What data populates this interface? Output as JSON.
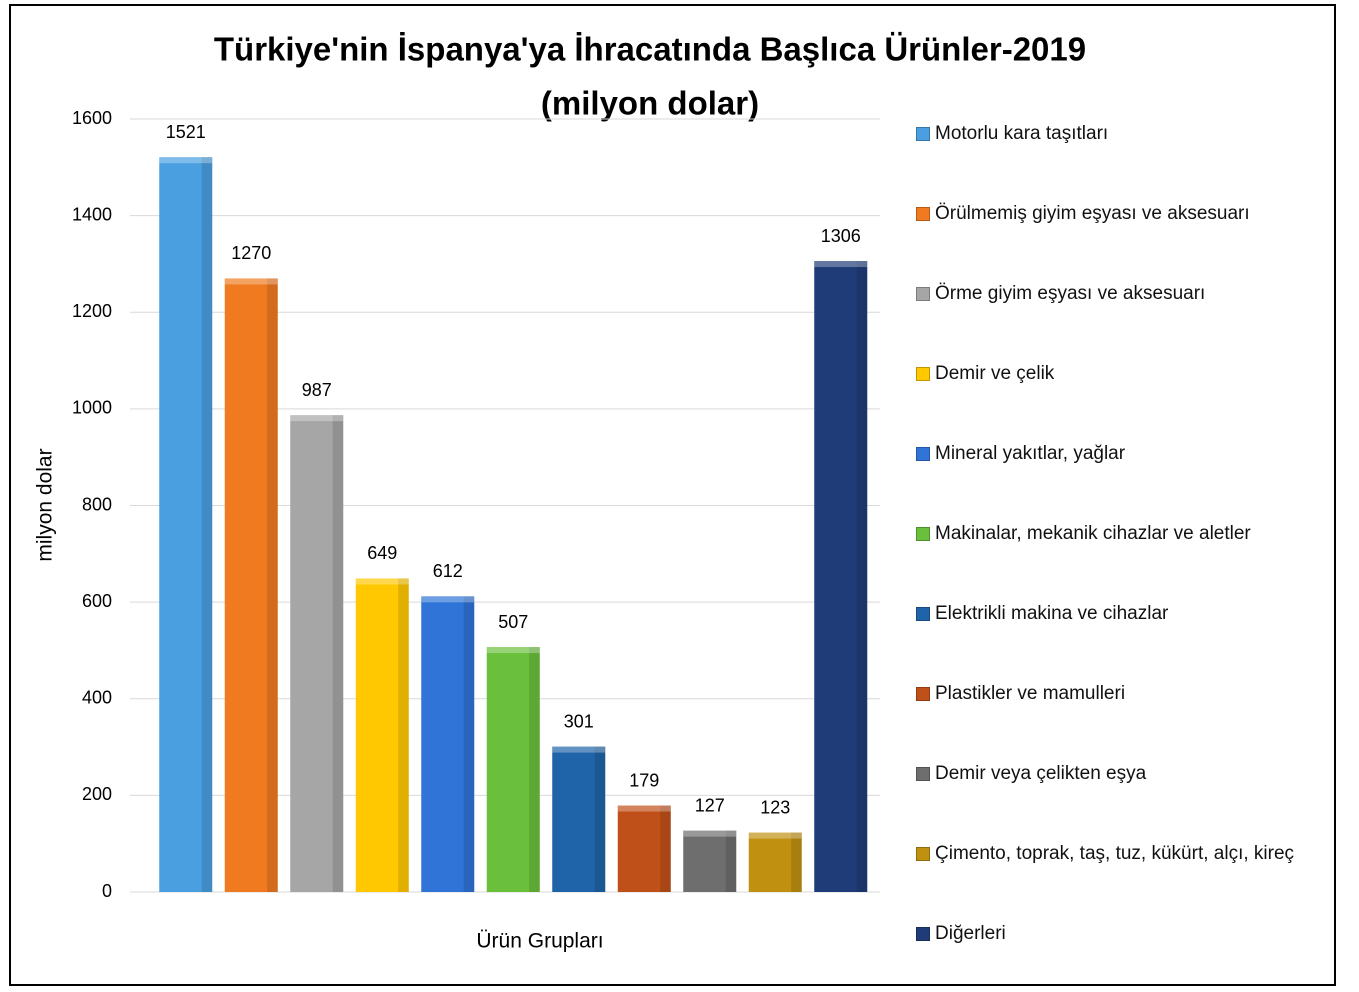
{
  "chart_data": {
    "type": "bar",
    "title": "Türkiye'nin İspanya'ya İhracatında Başlıca Ürünler-2019",
    "subtitle": "(milyon dolar)",
    "y_label": "milyon dolar",
    "x_label": "Ürün Grupları",
    "categories": [
      "Motorlu kara taşıtları",
      "Örülmemiş giyim eşyası ve aksesuarı",
      "Örme giyim eşyası ve aksesuarı",
      "Demir ve çelik",
      "Mineral yakıtlar, yağlar",
      "Makinalar, mekanik cihazlar ve aletler",
      "Elektrikli makina ve cihazlar",
      "Plastikler ve mamulleri",
      "Demir veya çelikten eşya",
      "Çimento, toprak, taş, tuz, kükürt, alçı, kireç",
      "Diğerleri"
    ],
    "values": [
      1521,
      1270,
      987,
      649,
      612,
      507,
      301,
      179,
      127,
      123,
      1306
    ],
    "colors": [
      "#4a9fe0",
      "#f07a1f",
      "#a6a6a6",
      "#ffc800",
      "#2f74d6",
      "#6abf3c",
      "#1f64a8",
      "#c0501a",
      "#6e6e6e",
      "#c09010",
      "#1f3c78"
    ],
    "ylim": [
      0,
      1600
    ],
    "yticks": [
      0,
      200,
      400,
      600,
      800,
      1000,
      1200,
      1400,
      1600
    ],
    "grid": true,
    "legend": "right"
  }
}
